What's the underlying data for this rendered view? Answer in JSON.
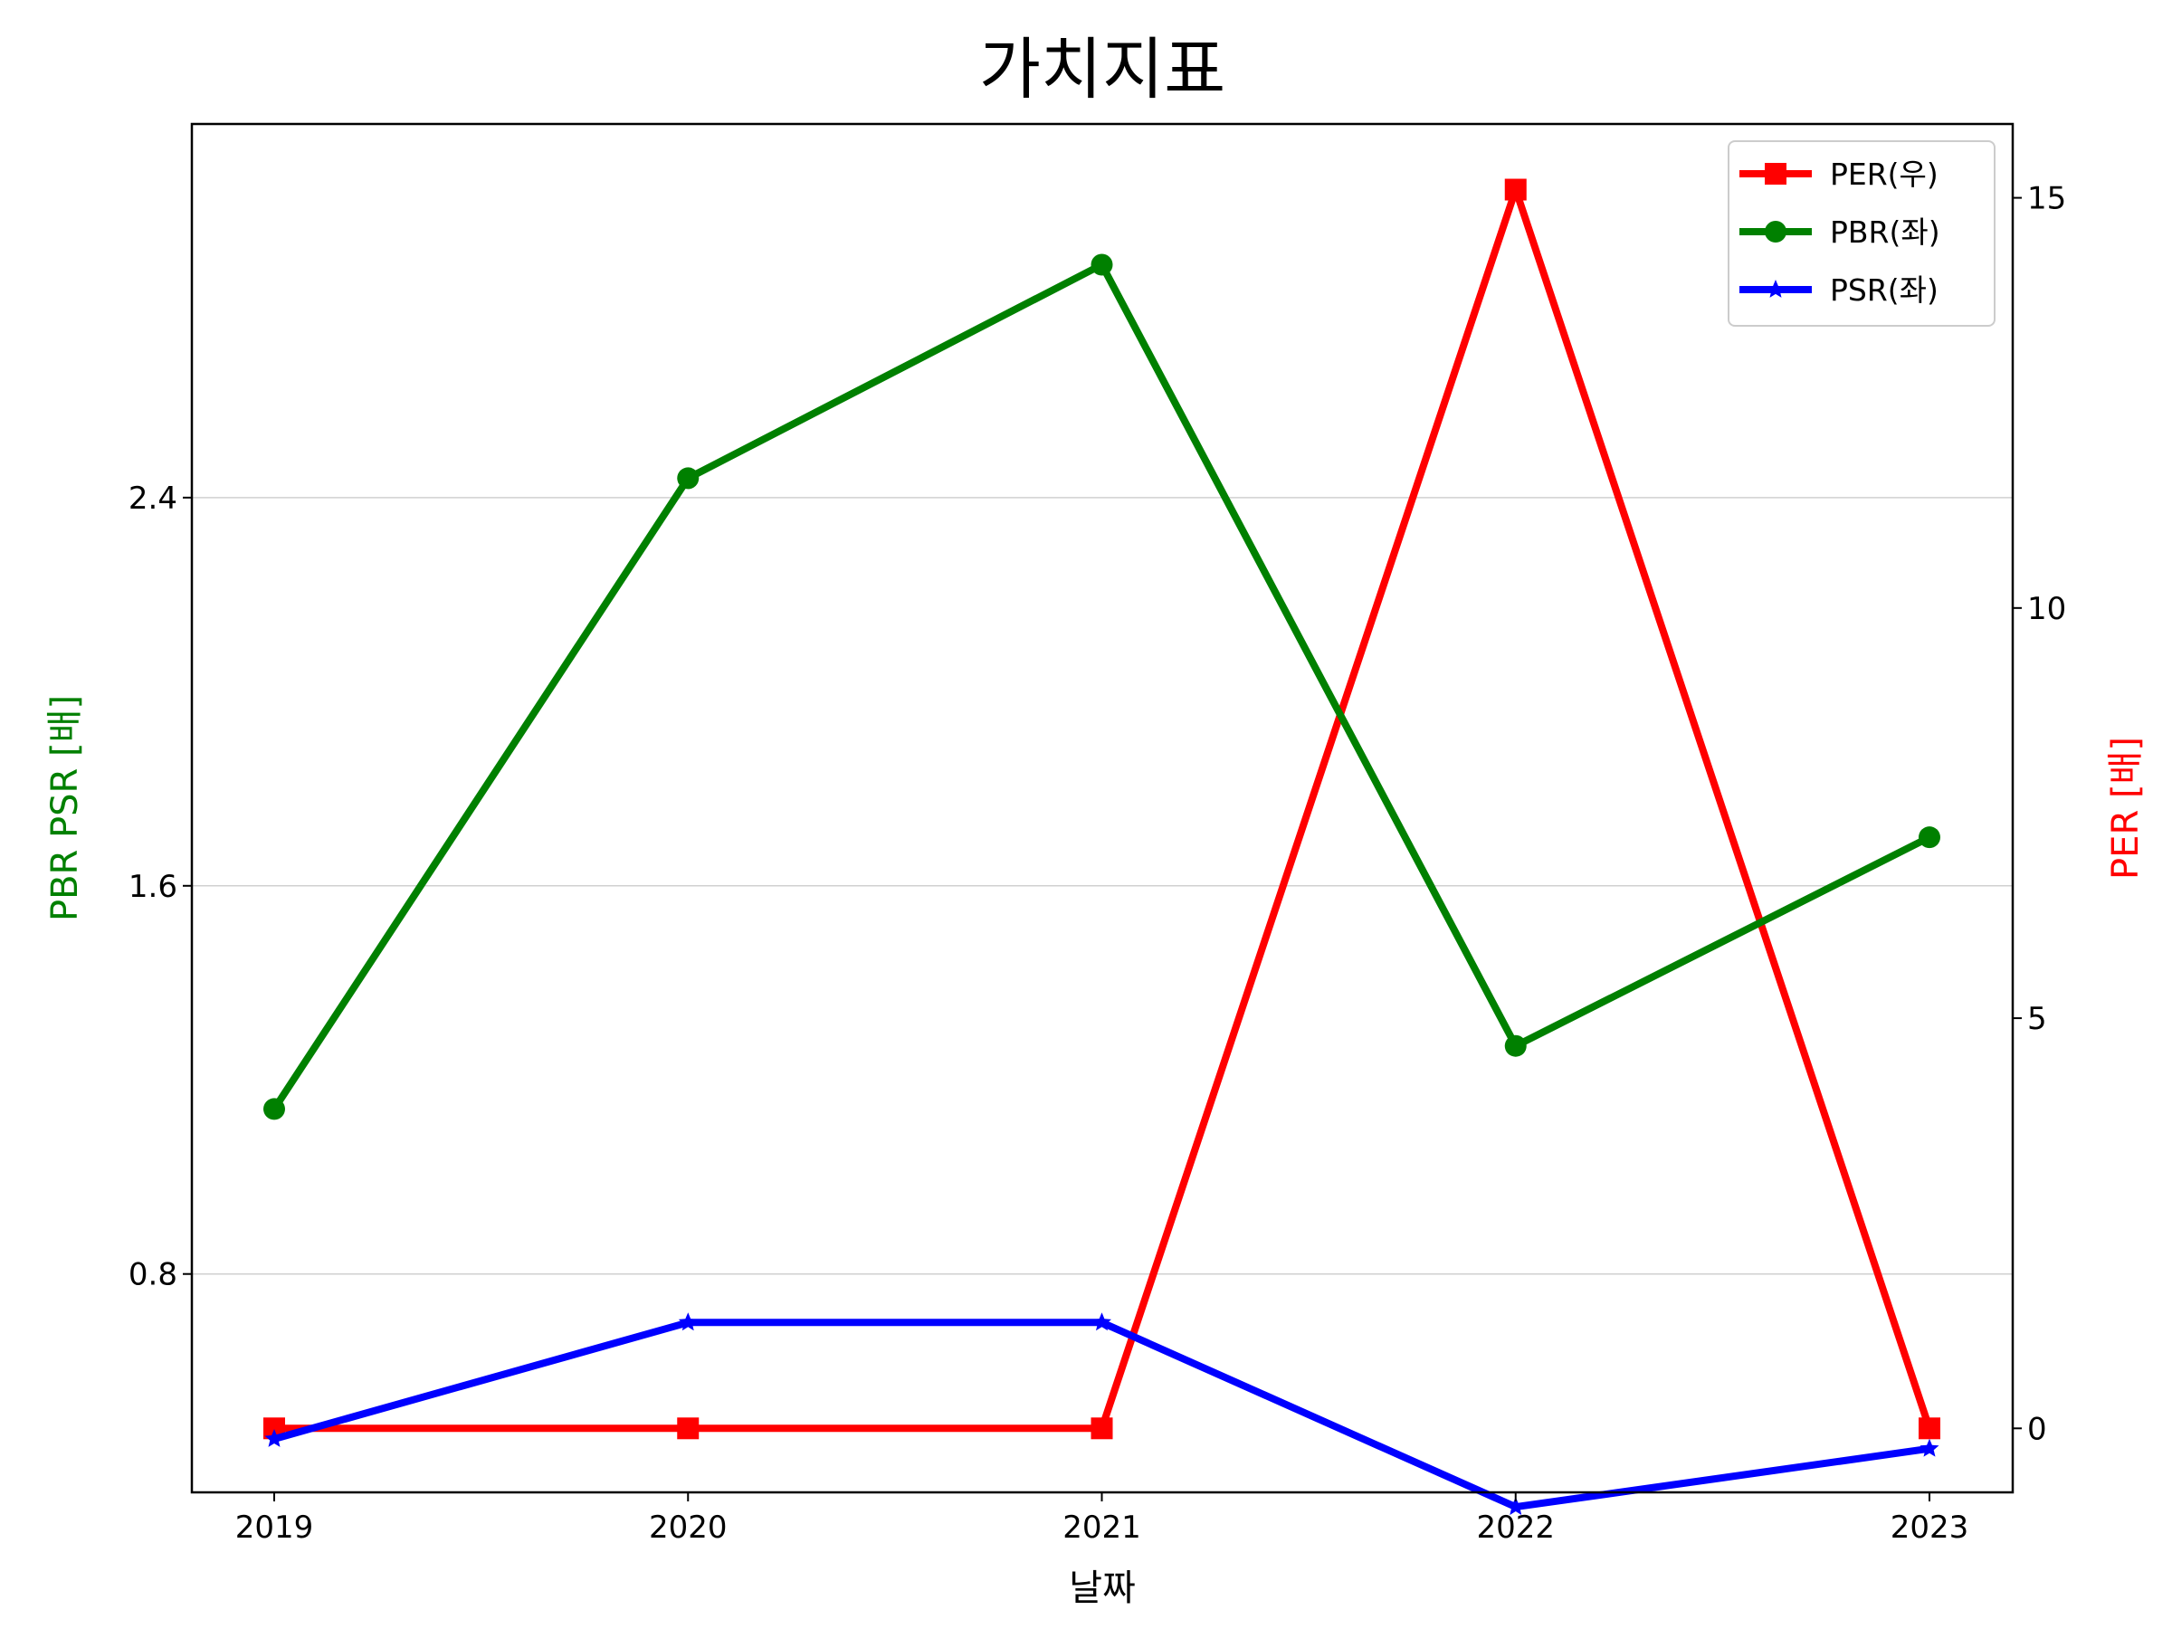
{
  "chart_data": {
    "type": "line",
    "title": "가치지표",
    "xlabel": "날짜",
    "ylabel_left": "PBR PSR [배]",
    "ylabel_right": "PER [배]",
    "categories": [
      "2019",
      "2020",
      "2021",
      "2022",
      "2023"
    ],
    "left_axis": {
      "ylim": [
        0.35,
        3.17
      ],
      "ticks": [
        0.8,
        1.6,
        2.4
      ],
      "tick_labels": [
        "0.8",
        "1.6",
        "2.4"
      ],
      "grid": true
    },
    "right_axis": {
      "ylim": [
        -0.78,
        15.9
      ],
      "ticks": [
        0,
        5,
        10,
        15
      ],
      "tick_labels": [
        "0",
        "5",
        "10",
        "15"
      ]
    },
    "legend_position": "top-right",
    "series": [
      {
        "name": "PER(우)",
        "axis": "right",
        "marker": "square",
        "color": "#ff0000",
        "values": [
          0,
          0,
          0,
          15.1,
          0
        ]
      },
      {
        "name": "PBR(좌)",
        "axis": "left",
        "marker": "circle",
        "color": "#008000",
        "values": [
          1.14,
          2.44,
          2.88,
          1.27,
          1.7
        ]
      },
      {
        "name": "PSR(좌)",
        "axis": "left",
        "marker": "star",
        "color": "#0000ff",
        "values": [
          0.46,
          0.7,
          0.7,
          0.32,
          0.44
        ]
      }
    ]
  }
}
